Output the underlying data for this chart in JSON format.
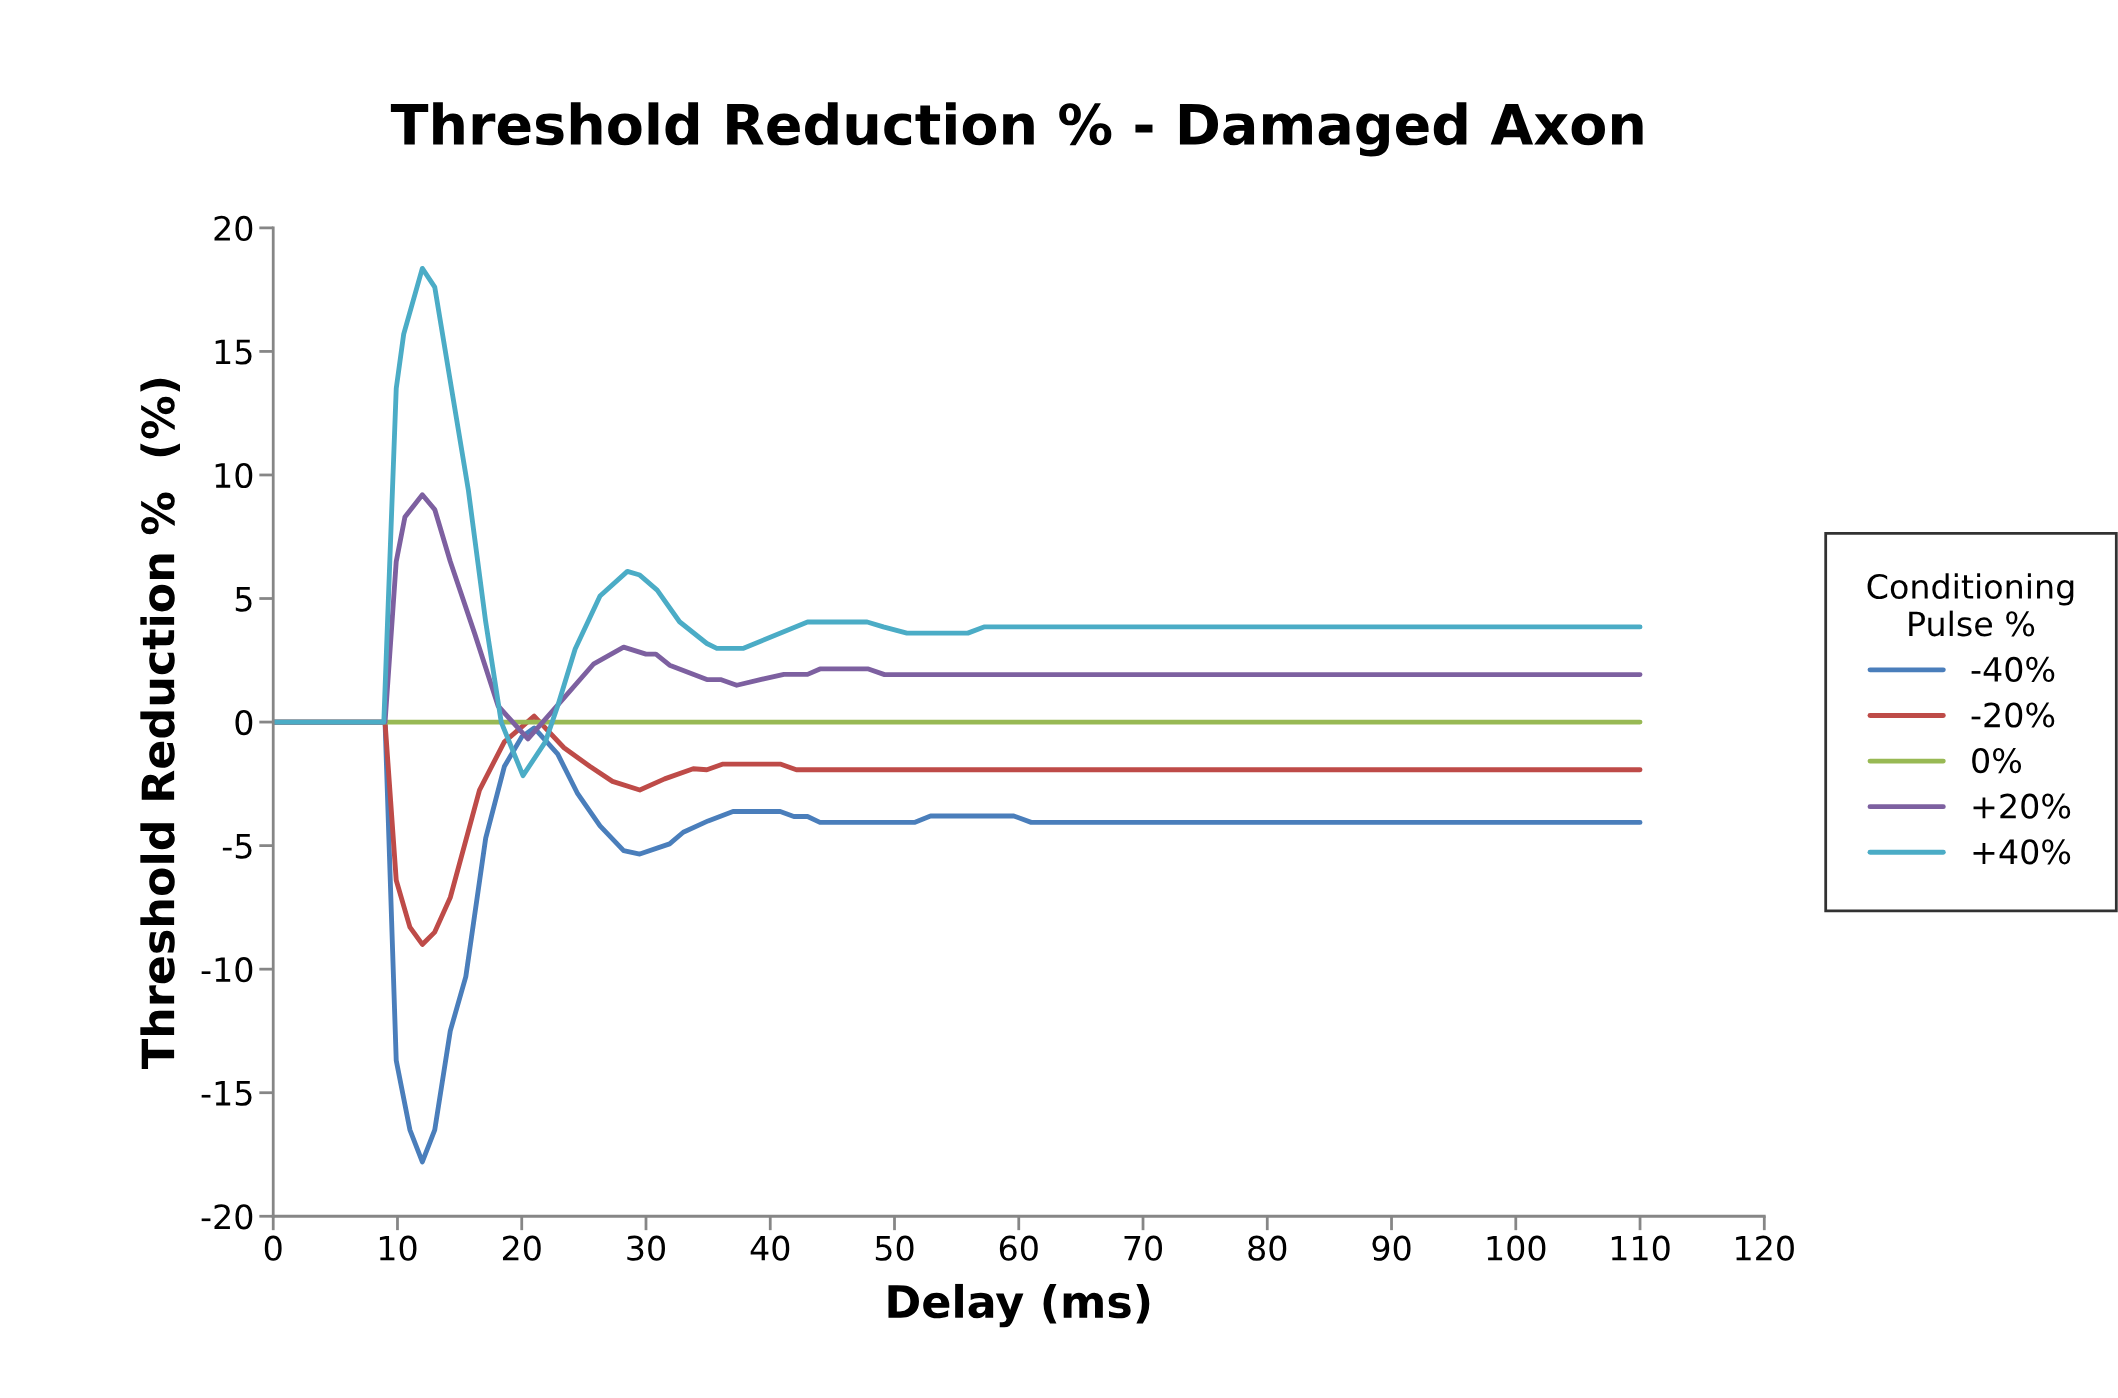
{
  "chart_data": {
    "type": "line",
    "title": "Threshold Reduction % - Damaged Axon",
    "xlabel": "Delay (ms)",
    "ylabel": "Threshold Reduction %  (%)",
    "legend_title": "Conditioning\nPulse %",
    "legend": "right",
    "grid": false,
    "marker": "none",
    "line_style": "solid",
    "xlim": [
      0,
      120
    ],
    "xticks": [
      0,
      10,
      20,
      30,
      40,
      50,
      60,
      70,
      80,
      90,
      100,
      110,
      120
    ],
    "ylim": [
      -20,
      20
    ],
    "yticks": [
      -20,
      -15,
      -10,
      -5,
      0,
      5,
      10,
      15,
      20
    ],
    "series": [
      {
        "name": "-40%",
        "color": "#4a7ebb",
        "x": [
          0,
          8,
          9,
          9.9,
          11,
          12,
          13,
          14.25,
          15.5,
          17.1,
          18.6,
          20,
          21,
          22.9,
          24.5,
          26.3,
          28.2,
          29.5,
          31.9,
          33,
          35,
          37,
          40.8,
          41.9,
          43,
          44,
          51.6,
          52.9,
          59.6,
          61,
          110
        ],
        "values": [
          0,
          0,
          0,
          -13.7,
          -16.5,
          -17.8,
          -16.5,
          -12.5,
          -10.3,
          -4.7,
          -1.8,
          -0.6,
          -0.24,
          -1.3,
          -2.9,
          -4.2,
          -5.2,
          -5.34,
          -4.93,
          -4.46,
          -4.0,
          -3.62,
          -3.62,
          -3.82,
          -3.82,
          -4.06,
          -4.06,
          -3.8,
          -3.8,
          -4.06,
          -4.06
        ]
      },
      {
        "name": "-20%",
        "color": "#be4b48",
        "x": [
          0,
          8,
          9,
          9.9,
          11,
          12,
          13,
          14.25,
          16.6,
          18.6,
          21,
          23.4,
          25.5,
          27.3,
          29.5,
          31.5,
          33.8,
          34.9,
          36.2,
          40.8,
          42.1,
          110
        ],
        "values": [
          0,
          0,
          0,
          -6.4,
          -8.3,
          -9.0,
          -8.5,
          -7.1,
          -2.75,
          -0.8,
          0.24,
          -1.04,
          -1.8,
          -2.4,
          -2.75,
          -2.3,
          -1.89,
          -1.93,
          -1.7,
          -1.7,
          -1.93,
          -1.93
        ]
      },
      {
        "name": "0%",
        "color": "#98b954",
        "x": [
          0,
          110
        ],
        "values": [
          0,
          0
        ]
      },
      {
        "name": "+20%",
        "color": "#7d60a0",
        "x": [
          0,
          8,
          9,
          9.9,
          10.6,
          12,
          13,
          14.25,
          16.2,
          18.1,
          20.5,
          22.4,
          25.8,
          28.2,
          30,
          30.8,
          31.9,
          34.9,
          36,
          37.3,
          39.2,
          41.1,
          43,
          44,
          47.9,
          49.2,
          110
        ],
        "values": [
          0,
          0,
          0,
          6.5,
          8.3,
          9.2,
          8.6,
          6.5,
          3.6,
          0.65,
          -0.68,
          0.4,
          2.36,
          3.03,
          2.75,
          2.75,
          2.3,
          1.72,
          1.72,
          1.49,
          1.72,
          1.93,
          1.93,
          2.15,
          2.15,
          1.92,
          1.92
        ]
      },
      {
        "name": "+40%",
        "color": "#4bacc6",
        "x": [
          0,
          8,
          8.9,
          9.9,
          10.5,
          12,
          13,
          14.25,
          15.7,
          17.1,
          18.35,
          20.1,
          21.9,
          22.9,
          24.3,
          26.3,
          28.5,
          29.5,
          30.9,
          32.7,
          34.9,
          35.7,
          37.8,
          43,
          47.8,
          49.1,
          51,
          55.9,
          57.2,
          110
        ],
        "values": [
          0,
          0,
          0,
          13.5,
          15.7,
          18.36,
          17.6,
          13.8,
          9.4,
          4.05,
          0,
          -2.17,
          -0.8,
          0.66,
          2.96,
          5.1,
          6.1,
          5.95,
          5.34,
          4.06,
          3.18,
          2.98,
          2.98,
          4.05,
          4.05,
          3.85,
          3.6,
          3.6,
          3.85,
          3.85
        ]
      }
    ]
  }
}
